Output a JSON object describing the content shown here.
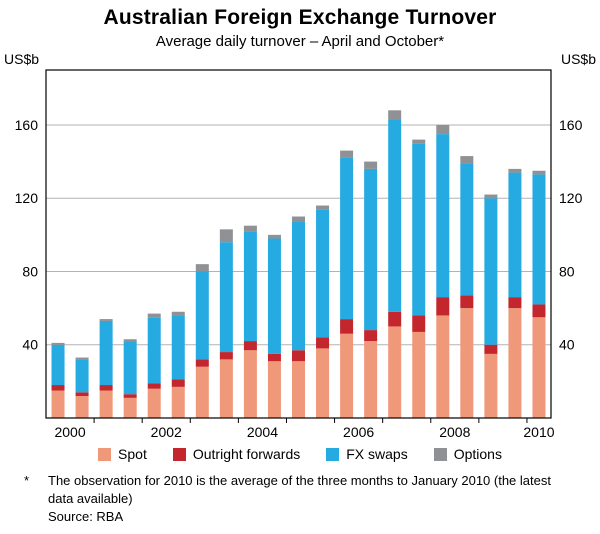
{
  "title": "Australian Foreign Exchange Turnover",
  "subtitle": "Average daily turnover – April and October*",
  "axis": {
    "unit_left": "US$b",
    "unit_right": "US$b"
  },
  "footnote": {
    "marker": "*",
    "text": "The observation for 2010 is the average of the three months to January 2010 (the latest data available)"
  },
  "source": "Source: RBA",
  "chart_data": {
    "type": "bar",
    "stacked": true,
    "title": "Australian Foreign Exchange Turnover",
    "subtitle": "Average daily turnover – April and October*",
    "ylabel": "US$b",
    "xlabel": "",
    "ylim": [
      0,
      190
    ],
    "yticks": [
      40,
      80,
      120,
      160
    ],
    "grid": true,
    "legend_position": "bottom",
    "categories": [
      "2000 Apr",
      "2000 Oct",
      "2001 Apr",
      "2001 Oct",
      "2002 Apr",
      "2002 Oct",
      "2003 Apr",
      "2003 Oct",
      "2004 Apr",
      "2004 Oct",
      "2005 Apr",
      "2005 Oct",
      "2006 Apr",
      "2006 Oct",
      "2007 Apr",
      "2007 Oct",
      "2008 Apr",
      "2008 Oct",
      "2009 Apr",
      "2009 Oct",
      "2010"
    ],
    "x_tick_labels": [
      "2000",
      "2002",
      "2004",
      "2006",
      "2008",
      "2010"
    ],
    "series": [
      {
        "name": "Spot",
        "color": "#F0987A",
        "values": [
          15,
          12,
          15,
          11,
          16,
          17,
          28,
          32,
          37,
          31,
          31,
          38,
          46,
          42,
          50,
          47,
          56,
          60,
          35,
          60,
          55
        ]
      },
      {
        "name": "Outright forwards",
        "color": "#C4262E",
        "values": [
          3,
          2,
          3,
          2,
          3,
          4,
          4,
          4,
          5,
          4,
          6,
          6,
          8,
          6,
          8,
          9,
          10,
          7,
          5,
          6,
          7
        ]
      },
      {
        "name": "FX swaps",
        "color": "#25AAE1",
        "values": [
          22,
          18,
          35,
          29,
          36,
          35,
          48,
          60,
          60,
          63,
          70,
          70,
          88,
          88,
          105,
          94,
          89,
          72,
          80,
          68,
          71
        ]
      },
      {
        "name": "Options",
        "color": "#8F9194",
        "values": [
          1,
          1,
          1,
          1,
          2,
          2,
          4,
          7,
          3,
          2,
          3,
          2,
          4,
          4,
          5,
          2,
          5,
          4,
          2,
          2,
          2
        ]
      }
    ]
  }
}
